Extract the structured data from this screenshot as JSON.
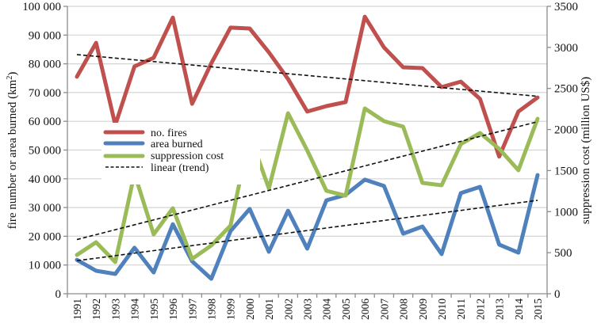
{
  "chart_data": {
    "type": "line",
    "title": "",
    "xlabel": "",
    "ylabel": "fire number or area burned (km2)",
    "ylabel_parts": {
      "main": "fire number or area burned (km",
      "sup": "2",
      "end": ")"
    },
    "y2label": "suppression cost (million US$)",
    "x": [
      1991,
      1992,
      1993,
      1994,
      1995,
      1996,
      1997,
      1998,
      1999,
      2000,
      2001,
      2002,
      2003,
      2004,
      2005,
      2006,
      2007,
      2008,
      2009,
      2010,
      2011,
      2012,
      2013,
      2014,
      2015
    ],
    "ylim": [
      0,
      100000
    ],
    "y2lim": [
      0,
      3500
    ],
    "yticks": [
      "0",
      "10 000",
      "20 000",
      "30 000",
      "40 000",
      "50 000",
      "60 000",
      "70 000",
      "80 000",
      "90 000",
      "100 000"
    ],
    "y2ticks": [
      "0",
      "500",
      "1000",
      "1500",
      "2000",
      "2500",
      "3000",
      "3500"
    ],
    "grid": true,
    "legend_position": "center-left",
    "series": [
      {
        "name": "no. fires",
        "axis": "left",
        "color": "#c0504d",
        "values": [
          75500,
          87300,
          58700,
          79100,
          82100,
          96100,
          66100,
          80200,
          92600,
          92300,
          84000,
          74700,
          63400,
          65300,
          66700,
          96400,
          85700,
          78800,
          78500,
          71900,
          73800,
          67800,
          47700,
          63400,
          68300
        ]
      },
      {
        "name": "area burned",
        "axis": "left",
        "color": "#4f81bd",
        "values": [
          11800,
          8000,
          6900,
          16000,
          7400,
          24200,
          11300,
          5200,
          21800,
          29500,
          14600,
          28900,
          15700,
          32500,
          34400,
          39700,
          37500,
          20900,
          23400,
          13800,
          35000,
          37200,
          17100,
          14300,
          41300
        ]
      },
      {
        "name": "suppression cost",
        "axis": "right",
        "color": "#9bbb59",
        "values": [
          472,
          627,
          386,
          1466,
          723,
          1041,
          424,
          588,
          829,
          1938,
          1282,
          2198,
          1745,
          1253,
          1195,
          2256,
          2102,
          2034,
          1350,
          1321,
          1822,
          1957,
          1764,
          1504,
          2131
        ]
      }
    ],
    "trends": [
      {
        "name": "linear (trend) no. fires",
        "axis": "left",
        "start": 83200,
        "end": 68700
      },
      {
        "name": "linear (trend) area burned",
        "axis": "left",
        "start": 11500,
        "end": 32500
      },
      {
        "name": "linear (trend) suppression cost",
        "axis": "right",
        "start": 660,
        "end": 2095
      }
    ],
    "legend": [
      {
        "label": "no. fires",
        "style": "solid",
        "color": "#c0504d"
      },
      {
        "label": "area burned",
        "style": "solid",
        "color": "#4f81bd"
      },
      {
        "label": "suppression cost",
        "style": "solid",
        "color": "#9bbb59"
      },
      {
        "label": "linear (trend)",
        "style": "dashed",
        "color": "#111111"
      }
    ]
  }
}
